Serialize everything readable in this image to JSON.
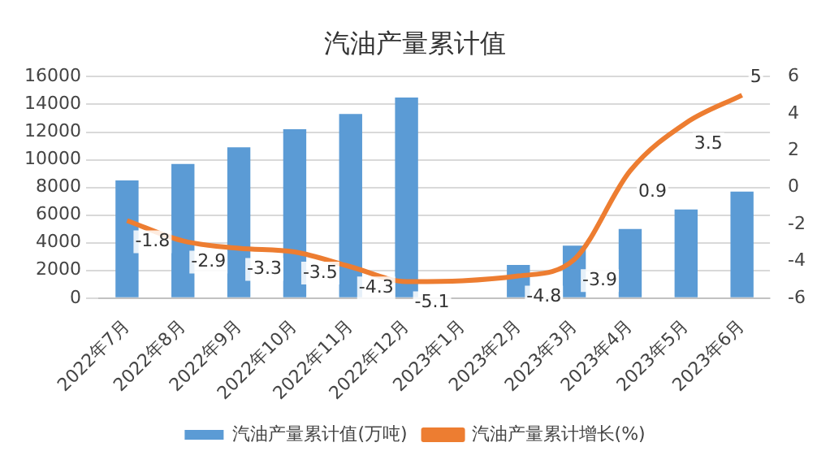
{
  "chart_data": {
    "type": "bar",
    "title": "汽油产量累计值",
    "categories": [
      "2022年7月",
      "2022年8月",
      "2022年9月",
      "2022年10月",
      "2022年11月",
      "2022年12月",
      "2023年1月",
      "2023年2月",
      "2023年3月",
      "2023年4月",
      "2023年5月",
      "2023年6月"
    ],
    "series": [
      {
        "name": "汽油产量累计值(万吨)",
        "color": "#5b9bd5",
        "values": [
          8500,
          9700,
          10900,
          12200,
          13300,
          14500,
          null,
          2400,
          3800,
          5000,
          6400,
          7700
        ]
      },
      {
        "name": "汽油产量累计增长(%)",
        "type": "line",
        "axis": "y2",
        "color": "#ed7d31",
        "values": [
          -1.8,
          -2.9,
          -3.3,
          -3.5,
          -4.3,
          -5.1,
          null,
          -4.8,
          -3.9,
          0.9,
          3.5,
          5
        ],
        "value_labels": [
          "-1.8",
          "-2.9",
          "-3.3",
          "-3.5",
          "-4.3",
          "-5.1",
          null,
          "-4.8",
          "-3.9",
          "0.9",
          "3.5",
          "5"
        ]
      }
    ],
    "ylim": [
      0,
      16000
    ],
    "yticks": [
      0,
      2000,
      4000,
      6000,
      8000,
      10000,
      12000,
      14000,
      16000
    ],
    "y2lim": [
      -6,
      6
    ],
    "y2ticks": [
      -6,
      -4,
      -2,
      0,
      2,
      4,
      6
    ],
    "grid": "y",
    "legend": "bottom",
    "marker": "none"
  }
}
